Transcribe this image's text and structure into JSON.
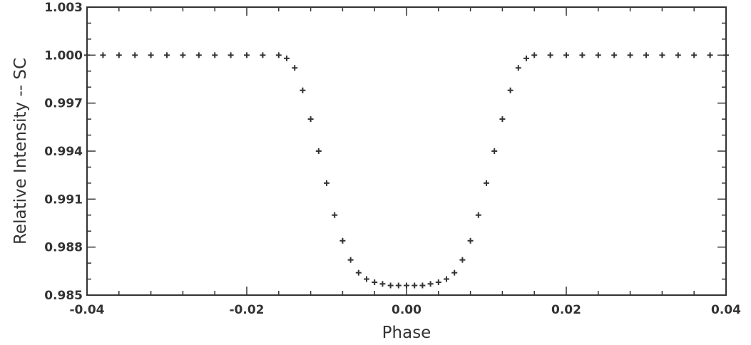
{
  "chart_data": {
    "type": "scatter",
    "marker": "plus",
    "color": "#333333",
    "title": "",
    "xlabel": "Phase",
    "ylabel": "Relative Intensity -- SC",
    "xlim": [
      -0.04,
      0.04
    ],
    "ylim": [
      0.985,
      1.003
    ],
    "xticks": [
      -0.04,
      -0.02,
      0.0,
      0.02,
      0.04
    ],
    "xtick_labels": [
      "-0.04",
      "-0.02",
      "0.00",
      "0.02",
      "0.04"
    ],
    "yticks": [
      0.985,
      0.988,
      0.991,
      0.994,
      0.997,
      1.0,
      1.003
    ],
    "ytick_labels": [
      "0.985",
      "0.988",
      "0.991",
      "0.994",
      "0.997",
      "1.000",
      "1.003"
    ],
    "grid": false,
    "series": [
      {
        "x": [
          -0.04,
          -0.038,
          -0.036,
          -0.034,
          -0.032,
          -0.03,
          -0.028,
          -0.026,
          -0.024,
          -0.022,
          -0.02,
          -0.018,
          -0.016,
          -0.015,
          -0.014,
          -0.013,
          -0.012,
          -0.011,
          -0.01,
          -0.009,
          -0.008,
          -0.007,
          -0.006,
          -0.005,
          -0.004,
          -0.003,
          -0.002,
          -0.001,
          0.0,
          0.001,
          0.002,
          0.003,
          0.004,
          0.005,
          0.006,
          0.007,
          0.008,
          0.009,
          0.01,
          0.011,
          0.012,
          0.013,
          0.014,
          0.015,
          0.016,
          0.018,
          0.02,
          0.022,
          0.024,
          0.026,
          0.028,
          0.03,
          0.032,
          0.034,
          0.036,
          0.038,
          0.04
        ],
        "y": [
          1.0,
          1.0,
          1.0,
          1.0,
          1.0,
          1.0,
          1.0,
          1.0,
          1.0,
          1.0,
          1.0,
          1.0,
          1.0,
          0.9998,
          0.9992,
          0.9978,
          0.996,
          0.994,
          0.992,
          0.99,
          0.9884,
          0.9872,
          0.9864,
          0.986,
          0.9858,
          0.9857,
          0.9856,
          0.9856,
          0.9856,
          0.9856,
          0.9856,
          0.9857,
          0.9858,
          0.986,
          0.9864,
          0.9872,
          0.9884,
          0.99,
          0.992,
          0.994,
          0.996,
          0.9978,
          0.9992,
          0.9998,
          1.0,
          1.0,
          1.0,
          1.0,
          1.0,
          1.0,
          1.0,
          1.0,
          1.0,
          1.0,
          1.0,
          1.0,
          1.0
        ]
      }
    ]
  }
}
